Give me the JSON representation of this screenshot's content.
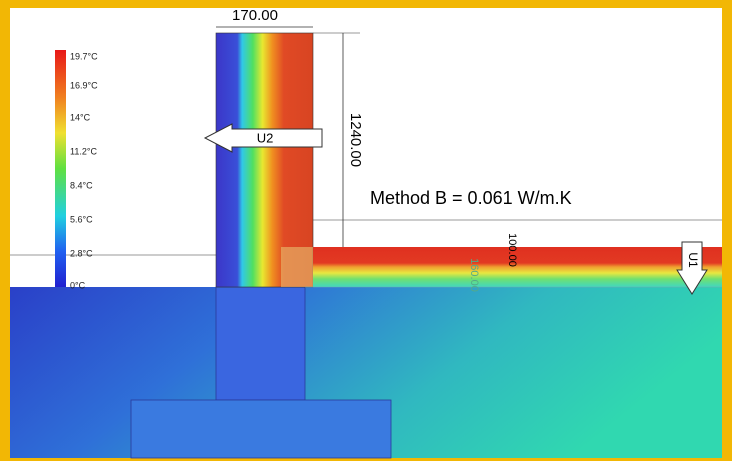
{
  "legend": {
    "labels": [
      "19.7°C",
      "16.9°C",
      "14°C",
      "11.2°C",
      "8.4°C",
      "5.6°C",
      "2.8°C",
      "0°C"
    ]
  },
  "dimensions": {
    "wall_width": "170.00",
    "wall_height": "1240.00",
    "slab": "100.00",
    "insulation": "160.00"
  },
  "result": "Method B = 0.061 W/m.K",
  "arrows": {
    "u2": "U2",
    "u1": "U1"
  }
}
